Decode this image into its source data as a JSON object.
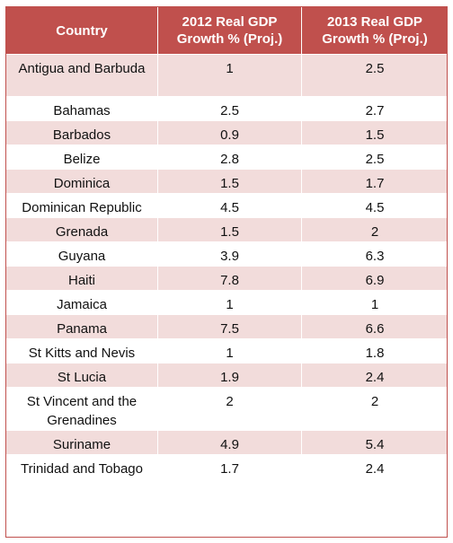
{
  "table": {
    "headers": [
      "Country",
      "2012 Real GDP Growth % (Proj.)",
      "2013 Real GDP Growth % (Proj.)"
    ],
    "rows": [
      {
        "country": "Antigua and Barbuda",
        "gdp_2012": "1",
        "gdp_2013": "2.5"
      },
      {
        "country": "Bahamas",
        "gdp_2012": "2.5",
        "gdp_2013": "2.7"
      },
      {
        "country": "Barbados",
        "gdp_2012": "0.9",
        "gdp_2013": "1.5"
      },
      {
        "country": "Belize",
        "gdp_2012": "2.8",
        "gdp_2013": "2.5"
      },
      {
        "country": "Dominica",
        "gdp_2012": "1.5",
        "gdp_2013": "1.7"
      },
      {
        "country": "Dominican Republic",
        "gdp_2012": "4.5",
        "gdp_2013": "4.5"
      },
      {
        "country": "Grenada",
        "gdp_2012": "1.5",
        "gdp_2013": "2"
      },
      {
        "country": "Guyana",
        "gdp_2012": "3.9",
        "gdp_2013": "6.3"
      },
      {
        "country": "Haiti",
        "gdp_2012": "7.8",
        "gdp_2013": "6.9"
      },
      {
        "country": "Jamaica",
        "gdp_2012": "1",
        "gdp_2013": "1"
      },
      {
        "country": "Panama",
        "gdp_2012": "7.5",
        "gdp_2013": "6.6"
      },
      {
        "country": "St Kitts and Nevis",
        "gdp_2012": "1",
        "gdp_2013": "1.8"
      },
      {
        "country": "St Lucia",
        "gdp_2012": "1.9",
        "gdp_2013": "2.4"
      },
      {
        "country": "St Vincent and the Grenadines",
        "gdp_2012": "2",
        "gdp_2013": "2"
      },
      {
        "country": "Suriname",
        "gdp_2012": "4.9",
        "gdp_2013": "5.4"
      },
      {
        "country": "Trinidad and Tobago",
        "gdp_2012": "1.7",
        "gdp_2013": "2.4"
      }
    ]
  },
  "colors": {
    "header_background": "#c0504d",
    "header_text": "#ffffff",
    "band_row_background": "#f2dcdb",
    "plain_row_background": "#ffffff"
  }
}
